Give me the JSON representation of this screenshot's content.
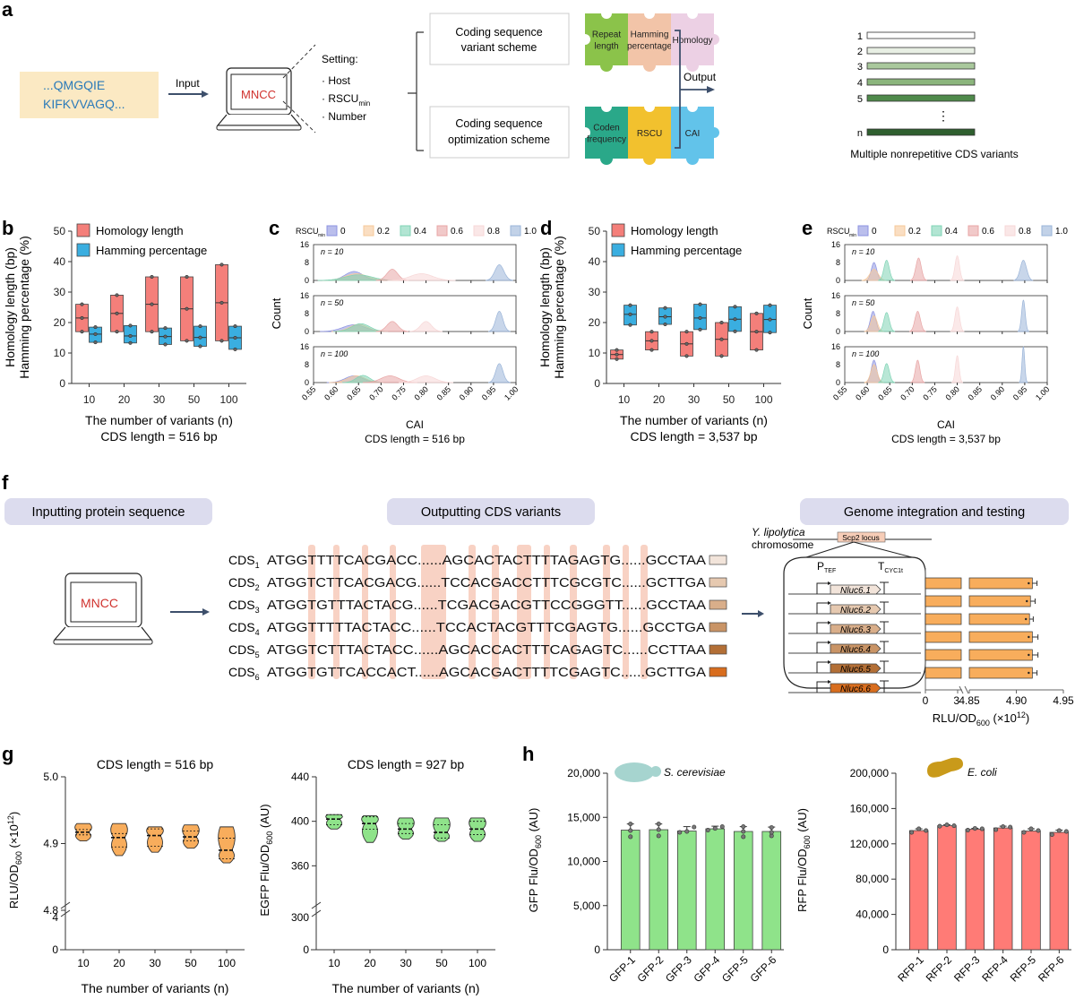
{
  "panel_labels": {
    "a": "a",
    "b": "b",
    "c": "c",
    "d": "d",
    "e": "e",
    "f": "f",
    "g": "g",
    "h": "h"
  },
  "panel_a": {
    "protein_seq": [
      "...QMGQIE",
      "KIFKVVAGQ..."
    ],
    "input_label": "Input",
    "tool_name": "MNCC",
    "settings_title": "Setting:",
    "settings": [
      "· Host",
      "· RSCU",
      "· Number"
    ],
    "settings_sub": "min",
    "scheme_variant": [
      "Coding sequence",
      "variant scheme"
    ],
    "scheme_opt": [
      "Coding sequence",
      "optimization scheme"
    ],
    "puzzle_top": [
      {
        "label": [
          "Repeat",
          "length"
        ],
        "color": "#8bc34a"
      },
      {
        "label": [
          "Hamming",
          "percentage"
        ],
        "color": "#f2c4a8"
      },
      {
        "label": [
          "Homology"
        ],
        "color": "#ecd0e4"
      }
    ],
    "puzzle_bottom": [
      {
        "label": [
          "Coden",
          "frequency"
        ],
        "color": "#2aa889"
      },
      {
        "label": [
          "RSCU"
        ],
        "color": "#f2c12e"
      },
      {
        "label": [
          "CAI"
        ],
        "color": "#62c3ea"
      }
    ],
    "output_label": "Output",
    "variant_labels": [
      "1",
      "2",
      "3",
      "4",
      "5",
      "⋮",
      "n"
    ],
    "variant_colors": [
      "#ffffff",
      "#e8efe4",
      "#a9c89c",
      "#8bb57c",
      "#4f8a4b",
      "",
      "#2f5f2f"
    ],
    "output_caption": "Multiple nonrepetitive CDS variants"
  },
  "panel_f": {
    "step1": "Inputting protein sequence",
    "step2": "Outputting CDS variants",
    "step3": "Genome integration and testing",
    "tool_name": "MNCC",
    "cds": [
      {
        "name": "CDS",
        "sub": "1",
        "seq": "ATGGTTTTCACGACC......AGCACTACTTTTAGAGTG......GCCTAA",
        "color": "#f2e4da"
      },
      {
        "name": "CDS",
        "sub": "2",
        "seq": "ATGGTCTTCACGACG......TCCACGACCTTTCGCGTC......GCTTGA",
        "color": "#e6c9b0"
      },
      {
        "name": "CDS",
        "sub": "3",
        "seq": "ATGGTGTTTACTACG......TCGACGACGTTCCGGGTT......GCCTAA",
        "color": "#d9ae8a"
      },
      {
        "name": "CDS",
        "sub": "4",
        "seq": "ATGGTTTTTACTACC......TCCACTACGTTTCGAGTG......GCCTGA",
        "color": "#c99466"
      },
      {
        "name": "CDS",
        "sub": "5",
        "seq": "ATGGTCTTTACTACC......AGCACCACTTTCAGAGTC......CCTTAA",
        "color": "#b36f36"
      },
      {
        "name": "CDS",
        "sub": "6",
        "seq": "ATGGTGTTCACCACT......AGCACGACTTTTCGAGTC......GCTTGA",
        "color": "#d86d1e"
      }
    ],
    "organism": "Y. lipolytica",
    "chromosome": "chromosome",
    "locus": "Scp2 locus",
    "promoter": "P",
    "promoter_sub": "TEF",
    "terminator": "T",
    "terminator_sub": "CYC1t",
    "genes": [
      "Nluc6.1",
      "Nluc6.2",
      "Nluc6.3",
      "Nluc6.4",
      "Nluc6.5",
      "Nluc6.6"
    ],
    "axis_label": "RLU/OD",
    "axis_sub": "600",
    "axis_unit": " (×10",
    "axis_exp": "12",
    "axis_close": ")"
  },
  "chart_data": [
    {
      "id": "b",
      "type": "box",
      "categories": [
        "10",
        "20",
        "30",
        "50",
        "100"
      ],
      "series": [
        {
          "name": "Homology length",
          "color": "#f47f7a",
          "points": [
            [
              17,
              21.5,
              26
            ],
            [
              17,
              23,
              29
            ],
            [
              17,
              26,
              35
            ],
            [
              14,
              24.5,
              35
            ],
            [
              14,
              26.5,
              39
            ]
          ]
        },
        {
          "name": "Hamming percentage",
          "color": "#3aaee0",
          "points": [
            [
              13.5,
              16.2,
              18.5
            ],
            [
              13.3,
              15.6,
              19
            ],
            [
              12.8,
              15.4,
              18.2
            ],
            [
              12.2,
              15.1,
              18.8
            ],
            [
              11.2,
              15,
              18.8
            ]
          ]
        }
      ],
      "ylabel": [
        "Homology length (bp)",
        "Hamming percentage (%)"
      ],
      "yticks": [
        0,
        10,
        20,
        30,
        40,
        50
      ],
      "ylim": [
        0,
        50
      ],
      "xlabel": [
        "The number of variants (n)",
        "CDS length = 516 bp"
      ]
    },
    {
      "id": "c",
      "type": "area",
      "legend_title": "RSCU",
      "legend_sub": "min",
      "legend": [
        {
          "name": "0",
          "color": "#8c93e0"
        },
        {
          "name": "0.2",
          "color": "#f6c89a"
        },
        {
          "name": "0.4",
          "color": "#7fd3b5"
        },
        {
          "name": "0.6",
          "color": "#e8a5a5"
        },
        {
          "name": "0.8",
          "color": "#f7d7d7"
        },
        {
          "name": "1.0",
          "color": "#9ab4d8"
        }
      ],
      "facets": [
        "n = 10",
        "n = 50",
        "n = 100"
      ],
      "peaks": [
        [
          [
            0.64,
            4,
            0.02
          ],
          [
            0.645,
            3,
            0.025
          ],
          [
            0.65,
            2.5,
            0.03
          ],
          [
            0.725,
            5,
            0.012
          ],
          [
            0.79,
            3,
            0.025
          ],
          [
            0.963,
            7,
            0.01
          ]
        ],
        [
          [
            0.64,
            3,
            0.025
          ],
          [
            0.65,
            3.2,
            0.02
          ],
          [
            0.655,
            3.5,
            0.02
          ],
          [
            0.725,
            4.5,
            0.012
          ],
          [
            0.8,
            4.5,
            0.012
          ],
          [
            0.963,
            9,
            0.008
          ]
        ],
        [
          [
            0.64,
            3,
            0.02
          ],
          [
            0.645,
            3,
            0.02
          ],
          [
            0.66,
            3.2,
            0.015
          ],
          [
            0.72,
            3,
            0.02
          ],
          [
            0.8,
            3,
            0.02
          ],
          [
            0.963,
            8.5,
            0.008
          ]
        ]
      ],
      "ylabel": "Count",
      "yticks": [
        0,
        8,
        16
      ],
      "ylim": [
        0,
        16
      ],
      "xticks": [
        "0.55",
        "0.60",
        "0.65",
        "0.70",
        "0.75",
        "0.80",
        "0.85",
        "0.90",
        "0.95",
        "1.00"
      ],
      "xlim": [
        0.55,
        1.0
      ],
      "xlabel": [
        "CAI",
        "CDS length = 516 bp"
      ]
    },
    {
      "id": "d",
      "type": "box",
      "categories": [
        "10",
        "20",
        "30",
        "50",
        "100"
      ],
      "series": [
        {
          "name": "Homology length",
          "color": "#f47f7a",
          "points": [
            [
              8,
              9.5,
              11
            ],
            [
              11,
              14,
              17
            ],
            [
              9,
              13,
              17
            ],
            [
              9,
              14.5,
              20
            ],
            [
              11,
              17,
              23
            ]
          ]
        },
        {
          "name": "Hamming percentage",
          "color": "#3aaee0",
          "points": [
            [
              19.2,
              22.7,
              25.7
            ],
            [
              19.4,
              21.9,
              24.8
            ],
            [
              17.7,
              21.5,
              26
            ],
            [
              17.1,
              21.1,
              25.2
            ],
            [
              16.7,
              21,
              25.7
            ]
          ]
        }
      ],
      "ylabel": [
        "Homology length (bp)",
        "Hamming percentage (%)"
      ],
      "yticks": [
        0,
        10,
        20,
        30,
        40,
        50
      ],
      "ylim": [
        0,
        50
      ],
      "xlabel": [
        "The number of variants (n)",
        "CDS length = 3,537 bp"
      ]
    },
    {
      "id": "e",
      "type": "area",
      "legend_title": "RSCU",
      "legend_sub": "min",
      "legend": [
        {
          "name": "0",
          "color": "#8c93e0"
        },
        {
          "name": "0.2",
          "color": "#f6c89a"
        },
        {
          "name": "0.4",
          "color": "#7fd3b5"
        },
        {
          "name": "0.6",
          "color": "#e8a5a5"
        },
        {
          "name": "0.8",
          "color": "#f7d7d7"
        },
        {
          "name": "1.0",
          "color": "#9ab4d8"
        }
      ],
      "facets": [
        "n = 10",
        "n = 50",
        "n = 100"
      ],
      "peaks": [
        [
          [
            0.615,
            8,
            0.006
          ],
          [
            0.615,
            5,
            0.009
          ],
          [
            0.643,
            9,
            0.006
          ],
          [
            0.714,
            10,
            0.006
          ],
          [
            0.8,
            11,
            0.005
          ],
          [
            0.947,
            9,
            0.007
          ]
        ],
        [
          [
            0.613,
            9,
            0.006
          ],
          [
            0.615,
            7,
            0.007
          ],
          [
            0.643,
            8.5,
            0.006
          ],
          [
            0.712,
            9,
            0.006
          ],
          [
            0.8,
            11,
            0.005
          ],
          [
            0.947,
            14,
            0.004
          ]
        ],
        [
          [
            0.615,
            10,
            0.006
          ],
          [
            0.615,
            8,
            0.007
          ],
          [
            0.643,
            8.5,
            0.006
          ],
          [
            0.712,
            10,
            0.005
          ],
          [
            0.8,
            12,
            0.004
          ],
          [
            0.947,
            16,
            0.003
          ]
        ]
      ],
      "ylabel": "Count",
      "yticks": [
        0,
        8,
        16
      ],
      "ylim": [
        0,
        16
      ],
      "xticks": [
        "0.55",
        "0.60",
        "0.65",
        "0.70",
        "0.75",
        "0.80",
        "0.85",
        "0.90",
        "0.95",
        "1.00"
      ],
      "xlim": [
        0.55,
        1.0
      ],
      "xlabel": [
        "CAI",
        "CDS length = 3,537 bp"
      ]
    },
    {
      "id": "f",
      "type": "bar",
      "orientation": "horizontal",
      "categories": [
        "Nluc6.1",
        "Nluc6.2",
        "Nluc6.3",
        "Nluc6.4",
        "Nluc6.5",
        "Nluc6.6"
      ],
      "values": [
        4.917,
        4.915,
        4.914,
        4.917,
        4.917,
        4.917
      ],
      "errors": [
        0.005,
        0.005,
        0.004,
        0.006,
        0.006,
        0.005
      ],
      "xticks": [
        "0",
        "3",
        "4.85",
        "4.90",
        "4.95"
      ],
      "color": "#f8ad5c"
    },
    {
      "id": "g1",
      "type": "violin",
      "title": "CDS length = 516 bp",
      "categories": [
        "10",
        "20",
        "30",
        "50",
        "100"
      ],
      "ranges": [
        [
          4.904,
          4.93
        ],
        [
          4.882,
          4.93
        ],
        [
          4.887,
          4.925
        ],
        [
          4.893,
          4.928
        ],
        [
          4.871,
          4.925
        ]
      ],
      "quartiles": [
        [
          4.913,
          4.917,
          4.921
        ],
        [
          4.895,
          4.909,
          4.915
        ],
        [
          4.896,
          4.912,
          4.922
        ],
        [
          4.904,
          4.91,
          4.919
        ],
        [
          4.877,
          4.89,
          4.908
        ]
      ],
      "color": "#f8ad5c",
      "ylabel": "RLU/OD600 (×10^12)",
      "ylabel_main": "RLU/OD",
      "ylabel_sub": "600",
      "ylabel_tail": " (×10",
      "ylabel_exp": "12",
      "yticks_upper": [
        "5.0",
        "4.9",
        "4.8"
      ],
      "yticks_lower": [
        "4",
        "0"
      ],
      "xlabel": "The number of variants (n)"
    },
    {
      "id": "g2",
      "type": "violin",
      "title": "CDS length = 927 bp",
      "categories": [
        "10",
        "20",
        "30",
        "50",
        "100"
      ],
      "ranges": [
        [
          393,
          406
        ],
        [
          381,
          405
        ],
        [
          384,
          403
        ],
        [
          382,
          403
        ],
        [
          382,
          403
        ]
      ],
      "quartiles": [
        [
          397,
          402,
          406
        ],
        [
          393,
          398,
          404
        ],
        [
          389,
          393,
          398
        ],
        [
          385,
          390,
          397
        ],
        [
          388,
          393,
          400
        ]
      ],
      "color": "#8fe38a",
      "ylabel_main": "EGFP Flu/OD",
      "ylabel_sub": "600",
      "ylabel_tail": " (AU)",
      "yticks_upper": [
        "440",
        "400",
        "360"
      ],
      "yticks_lower": [
        "300",
        "0"
      ],
      "xlabel": "The number of variants (n)"
    },
    {
      "id": "h1",
      "type": "bar",
      "organism": "S. cerevisiae",
      "categories": [
        "GFP-1",
        "GFP-2",
        "GFP-3",
        "GFP-4",
        "GFP-5",
        "GFP-6"
      ],
      "values": [
        13550,
        13600,
        13450,
        13700,
        13400,
        13400
      ],
      "errors": [
        700,
        650,
        500,
        300,
        550,
        500
      ],
      "points": [
        [
          12800,
          13500,
          14250
        ],
        [
          12900,
          13600,
          14250
        ],
        [
          13300,
          13400,
          13900
        ],
        [
          13550,
          13750,
          13950
        ],
        [
          12800,
          13400,
          13950
        ],
        [
          12900,
          13300,
          13850
        ]
      ],
      "color": "#8fe38a",
      "ylabel_main": "GFP Flu/OD",
      "ylabel_sub": "600",
      "ylabel_tail": " (AU)",
      "yticks": [
        "0",
        "5,000",
        "10,000",
        "15,000",
        "20,000"
      ],
      "ylim": [
        0,
        20000
      ]
    },
    {
      "id": "h2",
      "type": "bar",
      "organism": "E. coli",
      "categories": [
        "RFP-1",
        "RFP-2",
        "RFP-3",
        "RFP-4",
        "RFP-5",
        "RFP-6"
      ],
      "values": [
        135000,
        140500,
        136500,
        138000,
        134500,
        133000
      ],
      "errors": [
        2000,
        1000,
        1000,
        2000,
        2500,
        2500
      ],
      "points": [
        [
          133000,
          137000,
          135000
        ],
        [
          140000,
          141500,
          140500
        ],
        [
          135500,
          137500,
          137000
        ],
        [
          136000,
          139500,
          139000
        ],
        [
          133000,
          137000,
          135000
        ],
        [
          130500,
          135000,
          134000
        ]
      ],
      "color": "#ff7b76",
      "ylabel_main": "RFP Flu/OD",
      "ylabel_sub": "600",
      "ylabel_tail": " (AU)",
      "yticks": [
        "0",
        "40,000",
        "80,000",
        "120,000",
        "160,000",
        "200,000"
      ],
      "ylim": [
        0,
        200000
      ]
    }
  ]
}
